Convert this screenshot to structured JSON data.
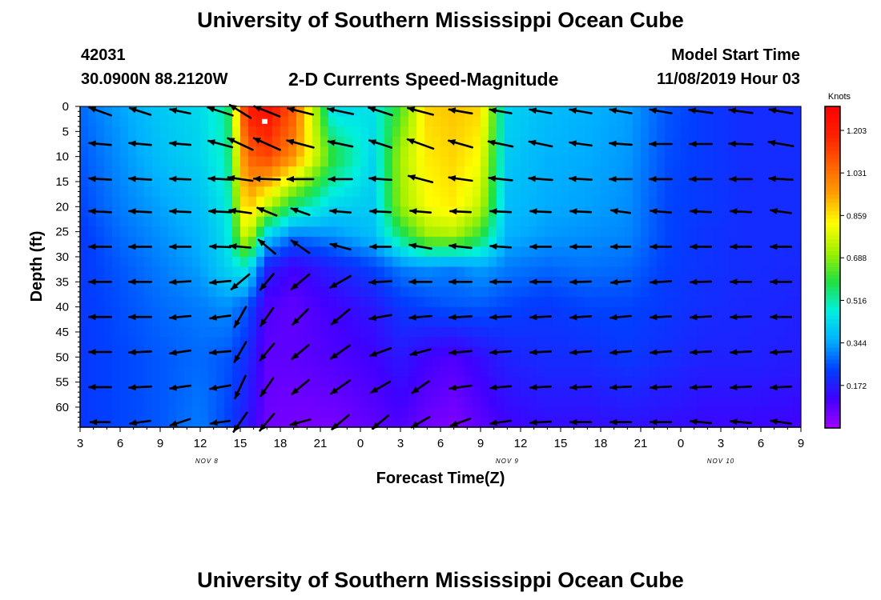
{
  "page": {
    "title": "University of Southern Mississippi Ocean Cube",
    "bottom_title": "University of Southern Mississippi Ocean Cube",
    "station_id": "42031",
    "coordinates": "30.0900N 88.2120W",
    "subtitle": "2-D Currents Speed-Magnitude",
    "model_start_label": "Model Start Time",
    "model_start_time": "11/08/2019 Hour 03"
  },
  "chart_data": {
    "type": "heatmap",
    "title": "2-D Currents Speed-Magnitude",
    "xlabel": "Forecast Time(Z)",
    "ylabel": "Depth (ft)",
    "x_hours": [
      3,
      6,
      9,
      12,
      15,
      18,
      21,
      24,
      27,
      30,
      33,
      36,
      39,
      42,
      45,
      48,
      51,
      54,
      57
    ],
    "x_tick_labels": [
      "3",
      "6",
      "9",
      "12",
      "15",
      "18",
      "21",
      "0",
      "3",
      "6",
      "9",
      "12",
      "15",
      "18",
      "21",
      "0",
      "3",
      "6",
      "9"
    ],
    "x_day_labels": [
      {
        "text": "NOV 8",
        "hour": 12.5
      },
      {
        "text": "NOV 9",
        "hour": 35
      },
      {
        "text": "NOV 10",
        "hour": 51
      }
    ],
    "xlim": [
      3,
      57
    ],
    "y_depths": [
      0,
      5,
      10,
      15,
      20,
      25,
      30,
      35,
      40,
      45,
      50,
      55,
      60
    ],
    "y_tick_labels": [
      "0",
      "5",
      "10",
      "15",
      "20",
      "25",
      "30",
      "35",
      "40",
      "45",
      "50",
      "55",
      "60"
    ],
    "ylim": [
      0,
      64
    ],
    "colorbar": {
      "label": "Knots",
      "ticks": [
        0.172,
        0.344,
        0.516,
        0.688,
        0.859,
        1.031,
        1.203
      ],
      "tick_labels": [
        "0.172",
        "0.344",
        "0.516",
        "0.688",
        "0.859",
        "1.031",
        "1.203"
      ],
      "range": [
        0,
        1.3
      ],
      "colors": [
        "#a000ff",
        "#4000ff",
        "#0040ff",
        "#00b0ff",
        "#00f0e0",
        "#20e040",
        "#a0f000",
        "#ffff00",
        "#ffa000",
        "#ff6000",
        "#ff2000",
        "#ff0000"
      ]
    },
    "time_nodes": [
      3,
      6,
      9,
      12,
      14,
      15.5,
      17,
      19,
      22,
      25,
      27,
      29,
      31,
      33,
      35,
      38,
      41,
      44,
      47,
      50,
      53,
      57
    ],
    "depth_nodes": [
      0,
      10,
      20,
      26,
      32,
      40,
      50,
      64
    ],
    "speed_knots": [
      [
        0.28,
        0.34,
        0.4,
        0.43,
        0.52,
        1.2,
        1.25,
        1.08,
        0.42,
        0.45,
        0.62,
        0.88,
        0.9,
        0.88,
        0.42,
        0.38,
        0.36,
        0.34,
        0.26,
        0.22,
        0.2,
        0.2
      ],
      [
        0.26,
        0.32,
        0.38,
        0.42,
        0.5,
        1.05,
        1.12,
        0.98,
        0.6,
        0.42,
        0.72,
        0.85,
        0.88,
        0.82,
        0.4,
        0.36,
        0.35,
        0.33,
        0.25,
        0.22,
        0.2,
        0.2
      ],
      [
        0.24,
        0.3,
        0.34,
        0.38,
        0.46,
        0.92,
        0.75,
        0.55,
        0.42,
        0.4,
        0.7,
        0.82,
        0.85,
        0.75,
        0.38,
        0.35,
        0.34,
        0.32,
        0.24,
        0.22,
        0.2,
        0.2
      ],
      [
        0.22,
        0.28,
        0.32,
        0.36,
        0.44,
        0.8,
        0.4,
        0.28,
        0.32,
        0.38,
        0.55,
        0.7,
        0.72,
        0.6,
        0.36,
        0.33,
        0.32,
        0.31,
        0.24,
        0.21,
        0.2,
        0.2
      ],
      [
        0.22,
        0.26,
        0.3,
        0.34,
        0.42,
        0.48,
        0.18,
        0.12,
        0.18,
        0.24,
        0.3,
        0.32,
        0.3,
        0.34,
        0.3,
        0.28,
        0.29,
        0.28,
        0.23,
        0.21,
        0.2,
        0.19
      ],
      [
        0.22,
        0.25,
        0.28,
        0.3,
        0.32,
        0.26,
        0.1,
        0.08,
        0.12,
        0.16,
        0.22,
        0.24,
        0.26,
        0.26,
        0.24,
        0.22,
        0.24,
        0.24,
        0.22,
        0.2,
        0.19,
        0.18
      ],
      [
        0.22,
        0.24,
        0.26,
        0.28,
        0.26,
        0.2,
        0.08,
        0.08,
        0.1,
        0.12,
        0.16,
        0.12,
        0.1,
        0.14,
        0.18,
        0.2,
        0.2,
        0.22,
        0.2,
        0.18,
        0.18,
        0.17
      ],
      [
        0.22,
        0.24,
        0.26,
        0.3,
        0.24,
        0.16,
        0.06,
        0.05,
        0.05,
        0.08,
        0.1,
        0.06,
        0.04,
        0.08,
        0.12,
        0.14,
        0.14,
        0.15,
        0.14,
        0.13,
        0.13,
        0.12
      ]
    ],
    "arrow_times": [
      4.5,
      7.5,
      10.5,
      13.5,
      15,
      17,
      19.5,
      22.5,
      25.5,
      28.5,
      31.5,
      34.5,
      37.5,
      40.5,
      43.5,
      46.5,
      49.5,
      52.5,
      55.5
    ],
    "arrow_depths": [
      1,
      7.5,
      14.5,
      21,
      28,
      35,
      42,
      49,
      56,
      63
    ],
    "arrow_rows": [
      [
        [
          0.34,
          20
        ],
        [
          0.32,
          18
        ],
        [
          0.3,
          12
        ],
        [
          0.38,
          18
        ],
        [
          0.36,
          32
        ],
        [
          0.4,
          22
        ],
        [
          0.38,
          14
        ],
        [
          0.38,
          12
        ],
        [
          0.36,
          18
        ],
        [
          0.38,
          15
        ],
        [
          0.34,
          10
        ],
        [
          0.32,
          10
        ],
        [
          0.32,
          10
        ],
        [
          0.32,
          10
        ],
        [
          0.32,
          10
        ],
        [
          0.32,
          10
        ],
        [
          0.34,
          8
        ],
        [
          0.34,
          8
        ],
        [
          0.34,
          10
        ]
      ],
      [
        [
          0.32,
          5
        ],
        [
          0.32,
          5
        ],
        [
          0.3,
          5
        ],
        [
          0.36,
          15
        ],
        [
          0.4,
          25
        ],
        [
          0.42,
          24
        ],
        [
          0.4,
          15
        ],
        [
          0.36,
          12
        ],
        [
          0.34,
          18
        ],
        [
          0.4,
          20
        ],
        [
          0.36,
          16
        ],
        [
          0.36,
          12
        ],
        [
          0.34,
          12
        ],
        [
          0.32,
          8
        ],
        [
          0.32,
          4
        ],
        [
          0.32,
          0
        ],
        [
          0.32,
          0
        ],
        [
          0.34,
          2
        ],
        [
          0.36,
          10
        ]
      ],
      [
        [
          0.32,
          3
        ],
        [
          0.32,
          3
        ],
        [
          0.3,
          2
        ],
        [
          0.34,
          3
        ],
        [
          0.36,
          8
        ],
        [
          0.38,
          2
        ],
        [
          0.38,
          0
        ],
        [
          0.34,
          0
        ],
        [
          0.32,
          4
        ],
        [
          0.36,
          15
        ],
        [
          0.34,
          8
        ],
        [
          0.34,
          6
        ],
        [
          0.34,
          4
        ],
        [
          0.32,
          3
        ],
        [
          0.32,
          0
        ],
        [
          0.32,
          0
        ],
        [
          0.32,
          0
        ],
        [
          0.32,
          0
        ],
        [
          0.34,
          3
        ]
      ],
      [
        [
          0.32,
          3
        ],
        [
          0.32,
          3
        ],
        [
          0.3,
          3
        ],
        [
          0.32,
          3
        ],
        [
          0.32,
          8
        ],
        [
          0.3,
          22
        ],
        [
          0.28,
          20
        ],
        [
          0.3,
          5
        ],
        [
          0.3,
          3
        ],
        [
          0.3,
          5
        ],
        [
          0.3,
          3
        ],
        [
          0.3,
          3
        ],
        [
          0.3,
          3
        ],
        [
          0.3,
          3
        ],
        [
          0.28,
          8
        ],
        [
          0.3,
          5
        ],
        [
          0.3,
          3
        ],
        [
          0.3,
          3
        ],
        [
          0.3,
          8
        ]
      ],
      [
        [
          0.32,
          0
        ],
        [
          0.32,
          0
        ],
        [
          0.3,
          0
        ],
        [
          0.3,
          2
        ],
        [
          0.3,
          5
        ],
        [
          0.32,
          40
        ],
        [
          0.32,
          35
        ],
        [
          0.3,
          15
        ],
        [
          0.3,
          0
        ],
        [
          0.32,
          10
        ],
        [
          0.32,
          6
        ],
        [
          0.3,
          4
        ],
        [
          0.3,
          0
        ],
        [
          0.3,
          0
        ],
        [
          0.28,
          0
        ],
        [
          0.3,
          0
        ],
        [
          0.3,
          0
        ],
        [
          0.3,
          0
        ],
        [
          0.3,
          0
        ]
      ],
      [
        [
          0.32,
          0
        ],
        [
          0.32,
          0
        ],
        [
          0.3,
          -3
        ],
        [
          0.3,
          -5
        ],
        [
          0.34,
          -40
        ],
        [
          0.3,
          -50
        ],
        [
          0.34,
          -40
        ],
        [
          0.34,
          -30
        ],
        [
          0.32,
          -3
        ],
        [
          0.32,
          0
        ],
        [
          0.32,
          0
        ],
        [
          0.3,
          0
        ],
        [
          0.3,
          0
        ],
        [
          0.3,
          -2
        ],
        [
          0.28,
          -5
        ],
        [
          0.3,
          -3
        ],
        [
          0.3,
          -2
        ],
        [
          0.3,
          0
        ],
        [
          0.3,
          0
        ]
      ],
      [
        [
          0.32,
          0
        ],
        [
          0.32,
          0
        ],
        [
          0.3,
          -5
        ],
        [
          0.3,
          -8
        ],
        [
          0.34,
          -60
        ],
        [
          0.32,
          -55
        ],
        [
          0.32,
          -45
        ],
        [
          0.34,
          -40
        ],
        [
          0.32,
          -10
        ],
        [
          0.32,
          -5
        ],
        [
          0.32,
          -3
        ],
        [
          0.3,
          -3
        ],
        [
          0.3,
          -3
        ],
        [
          0.3,
          -4
        ],
        [
          0.3,
          -5
        ],
        [
          0.3,
          -3
        ],
        [
          0.3,
          -3
        ],
        [
          0.3,
          -2
        ],
        [
          0.3,
          0
        ]
      ],
      [
        [
          0.32,
          0
        ],
        [
          0.32,
          -3
        ],
        [
          0.3,
          -8
        ],
        [
          0.3,
          -5
        ],
        [
          0.34,
          -60
        ],
        [
          0.32,
          -50
        ],
        [
          0.32,
          -40
        ],
        [
          0.34,
          -35
        ],
        [
          0.32,
          -20
        ],
        [
          0.3,
          -15
        ],
        [
          0.32,
          -5
        ],
        [
          0.3,
          -4
        ],
        [
          0.3,
          -3
        ],
        [
          0.3,
          -4
        ],
        [
          0.3,
          -5
        ],
        [
          0.3,
          -4
        ],
        [
          0.3,
          -3
        ],
        [
          0.3,
          -3
        ],
        [
          0.3,
          -3
        ]
      ],
      [
        [
          0.32,
          0
        ],
        [
          0.32,
          -3
        ],
        [
          0.3,
          -8
        ],
        [
          0.3,
          -10
        ],
        [
          0.36,
          -65
        ],
        [
          0.32,
          -55
        ],
        [
          0.32,
          -40
        ],
        [
          0.34,
          -35
        ],
        [
          0.32,
          -30
        ],
        [
          0.3,
          -35
        ],
        [
          0.32,
          -8
        ],
        [
          0.3,
          -5
        ],
        [
          0.3,
          -3
        ],
        [
          0.3,
          -3
        ],
        [
          0.3,
          -3
        ],
        [
          0.3,
          -3
        ],
        [
          0.3,
          -3
        ],
        [
          0.3,
          -3
        ],
        [
          0.3,
          -3
        ]
      ],
      [
        [
          0.28,
          0
        ],
        [
          0.3,
          -8
        ],
        [
          0.3,
          -18
        ],
        [
          0.28,
          -8
        ],
        [
          0.34,
          -55
        ],
        [
          0.32,
          -50
        ],
        [
          0.3,
          -15
        ],
        [
          0.32,
          -40
        ],
        [
          0.3,
          -40
        ],
        [
          0.3,
          -30
        ],
        [
          0.3,
          -20
        ],
        [
          0.3,
          -8
        ],
        [
          0.3,
          -3
        ],
        [
          0.3,
          0
        ],
        [
          0.3,
          0
        ],
        [
          0.3,
          0
        ],
        [
          0.3,
          5
        ],
        [
          0.3,
          5
        ],
        [
          0.3,
          8
        ]
      ]
    ],
    "marker": {
      "hour": 16.8,
      "depth": 3
    }
  }
}
